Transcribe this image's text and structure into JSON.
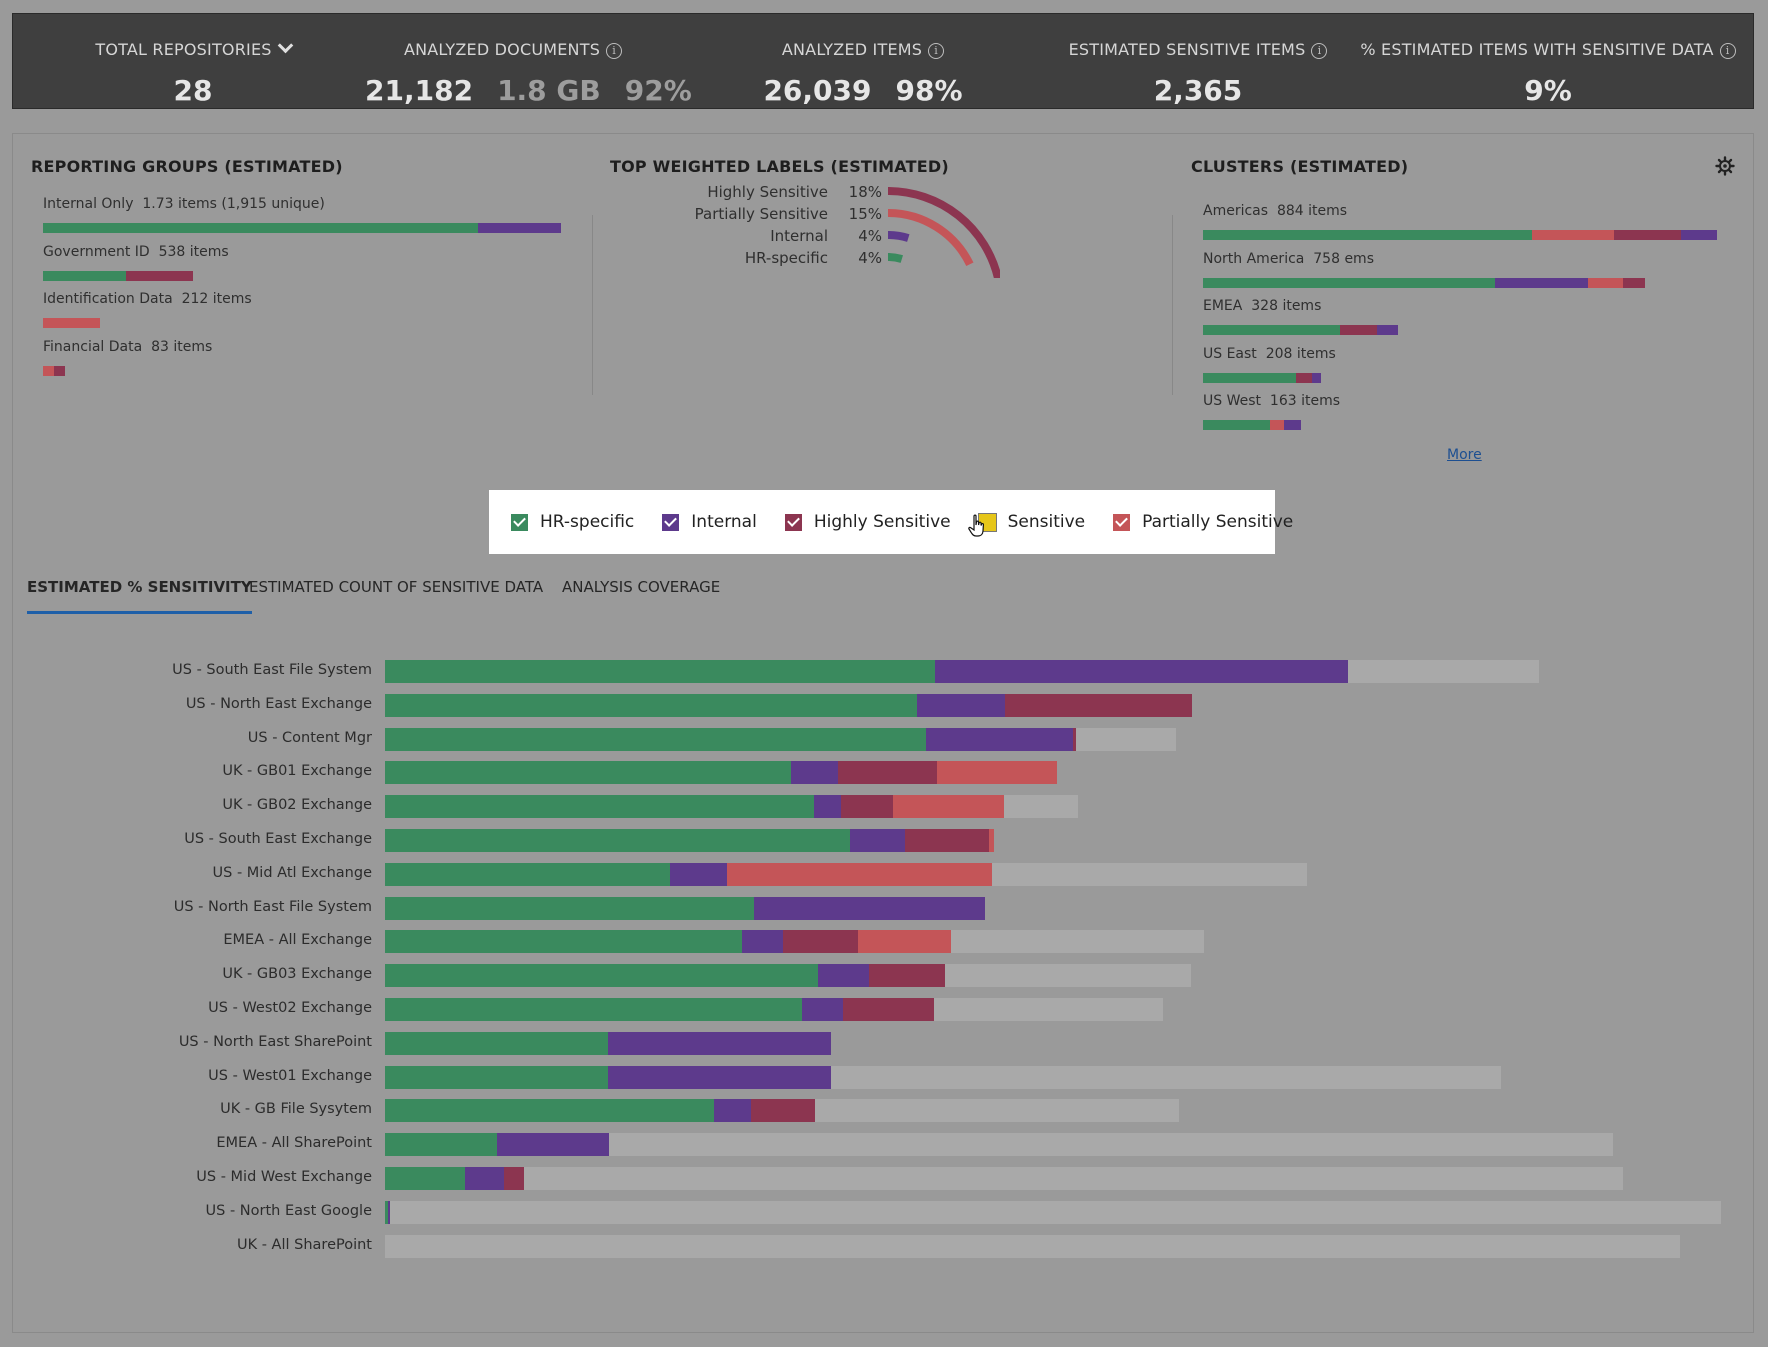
{
  "colors": {
    "hr": "#3a8a5e",
    "internal": "#5d3a8c",
    "highly": "#8c3550",
    "sensitive": "#e6c619",
    "partially": "#c45558",
    "remaining": "#a9a9a9"
  },
  "stats": {
    "total_repositories": {
      "label": "TOTAL REPOSITORIES",
      "value": "28"
    },
    "analyzed_documents": {
      "label": "ANALYZED DOCUMENTS",
      "count": "21,182",
      "size": "1.8 GB",
      "pct": "92%"
    },
    "analyzed_items": {
      "label": "ANALYZED ITEMS",
      "count": "26,039",
      "pct": "98%"
    },
    "estimated_sensitive_items": {
      "label": "ESTIMATED SENSITIVE ITEMS",
      "value": "2,365"
    },
    "pct_sensitive": {
      "label": "% ESTIMATED ITEMS WITH SENSITIVE DATA",
      "value": "9%"
    }
  },
  "reporting_groups": {
    "title": "REPORTING GROUPS (ESTIMATED)",
    "items": [
      {
        "name": "Internal Only",
        "detail": "1.73 items (1,915 unique)",
        "segments": [
          [
            "hr",
            0.84
          ],
          [
            "internal",
            0.16
          ]
        ],
        "width": 1.0
      },
      {
        "name": "Government ID",
        "detail": "538 items",
        "segments": [
          [
            "hr",
            0.55
          ],
          [
            "highly",
            0.45
          ]
        ],
        "width": 0.29
      },
      {
        "name": "Identification Data",
        "detail": "212 items",
        "segments": [
          [
            "partially",
            1.0
          ]
        ],
        "width": 0.11
      },
      {
        "name": "Financial Data",
        "detail": "83 items",
        "segments": [
          [
            "partially",
            0.5
          ],
          [
            "highly",
            0.5
          ]
        ],
        "width": 0.042
      }
    ]
  },
  "top_labels": {
    "title": "TOP WEIGHTED LABELS  (ESTIMATED)",
    "items": [
      {
        "name": "Highly Sensitive",
        "pct": "18%",
        "value": 18,
        "color": "highly"
      },
      {
        "name": "Partially Sensitive",
        "pct": "15%",
        "value": 15,
        "color": "partially"
      },
      {
        "name": "Internal",
        "pct": "4%",
        "value": 4,
        "color": "internal"
      },
      {
        "name": "HR-specific",
        "pct": "4%",
        "value": 4,
        "color": "hr"
      }
    ]
  },
  "clusters": {
    "title": "CLUSTERS (ESTIMATED)",
    "more_label": "More",
    "items": [
      {
        "name": "Americas",
        "detail": "884 items",
        "segments": [
          [
            "hr",
            0.64
          ],
          [
            "partially",
            0.16
          ],
          [
            "highly",
            0.13
          ],
          [
            "internal",
            0.07
          ]
        ],
        "width": 1.0
      },
      {
        "name": "North America",
        "detail": "758 ems",
        "segments": [
          [
            "hr",
            0.66
          ],
          [
            "internal",
            0.21
          ],
          [
            "partially",
            0.08
          ],
          [
            "highly",
            0.05
          ]
        ],
        "width": 0.86
      },
      {
        "name": "EMEA",
        "detail": "328 items",
        "segments": [
          [
            "hr",
            0.7
          ],
          [
            "highly",
            0.19
          ],
          [
            "internal",
            0.11
          ]
        ],
        "width": 0.38
      },
      {
        "name": "US East",
        "detail": "208 items",
        "segments": [
          [
            "hr",
            0.79
          ],
          [
            "highly",
            0.13
          ],
          [
            "internal",
            0.08
          ]
        ],
        "width": 0.23
      },
      {
        "name": "US West",
        "detail": "163 items",
        "segments": [
          [
            "hr",
            0.69
          ],
          [
            "partially",
            0.14
          ],
          [
            "internal",
            0.17
          ]
        ],
        "width": 0.19
      }
    ]
  },
  "legend": [
    {
      "key": "hr",
      "label": "HR-specific",
      "checked": true
    },
    {
      "key": "internal",
      "label": "Internal",
      "checked": true
    },
    {
      "key": "highly",
      "label": "Highly Sensitive",
      "checked": true
    },
    {
      "key": "sensitive",
      "label": "Sensitive",
      "checked": false
    },
    {
      "key": "partially",
      "label": "Partially Sensitive",
      "checked": true
    }
  ],
  "tabs": [
    {
      "label": "ESTIMATED % SENSITIVITY",
      "active": true
    },
    {
      "label": "ESTIMATED COUNT OF SENSITIVE DATA",
      "active": false
    },
    {
      "label": "ANALYSIS COVERAGE",
      "active": false
    }
  ],
  "chart_data": {
    "type": "bar",
    "orientation": "horizontal",
    "stacked": true,
    "series_keys": [
      "hr",
      "internal",
      "highly",
      "partially"
    ],
    "x_max": 100,
    "rows": [
      {
        "name": "US - South East File System",
        "values": [
          41.2,
          30.9,
          0,
          0
        ],
        "total": 86.4
      },
      {
        "name": "US - North East Exchange",
        "values": [
          39.8,
          6.6,
          14.0,
          0
        ],
        "total": 60.4
      },
      {
        "name": "US - Content Mgr",
        "values": [
          40.5,
          11.0,
          0.2,
          0
        ],
        "total": 59.2
      },
      {
        "name": "UK - GB01 Exchange",
        "values": [
          30.4,
          3.5,
          7.4,
          9.0
        ],
        "total": 50.3
      },
      {
        "name": "UK - GB02 Exchange",
        "values": [
          32.1,
          2.0,
          3.9,
          8.3
        ],
        "total": 51.9
      },
      {
        "name": "US - South East Exchange",
        "values": [
          34.8,
          4.1,
          6.3,
          0.4
        ],
        "total": 45.6
      },
      {
        "name": "US - Mid Atl Exchange",
        "values": [
          21.3,
          4.3,
          0,
          19.8
        ],
        "total": 69.0
      },
      {
        "name": "US - North East File System",
        "values": [
          27.6,
          17.3,
          0,
          0
        ],
        "total": 44.9
      },
      {
        "name": "EMEA - All Exchange",
        "values": [
          26.7,
          3.1,
          5.6,
          7.0
        ],
        "total": 61.3
      },
      {
        "name": "UK - GB03 Exchange",
        "values": [
          32.4,
          3.8,
          5.7,
          0
        ],
        "total": 60.3
      },
      {
        "name": "US - West02 Exchange",
        "values": [
          31.2,
          3.1,
          6.8,
          0
        ],
        "total": 58.2
      },
      {
        "name": "US - North East SharePoint",
        "values": [
          16.7,
          16.7,
          0,
          0
        ],
        "total": 33.4
      },
      {
        "name": "US - West01 Exchange",
        "values": [
          16.7,
          16.7,
          0,
          0
        ],
        "total": 83.5
      },
      {
        "name": "UK - GB File Sysytem",
        "values": [
          24.6,
          2.8,
          4.8,
          0
        ],
        "total": 59.4
      },
      {
        "name": "EMEA - All SharePoint",
        "values": [
          8.4,
          8.4,
          0,
          0
        ],
        "total": 91.9
      },
      {
        "name": "US - Mid West Exchange",
        "values": [
          6.0,
          2.9,
          1.5,
          0
        ],
        "total": 92.7
      },
      {
        "name": "US - North East Google",
        "values": [
          0.2,
          0.2,
          0,
          0
        ],
        "total": 100
      },
      {
        "name": "UK - All SharePoint",
        "values": [
          0,
          0,
          0,
          0
        ],
        "total": 96.9
      }
    ]
  }
}
